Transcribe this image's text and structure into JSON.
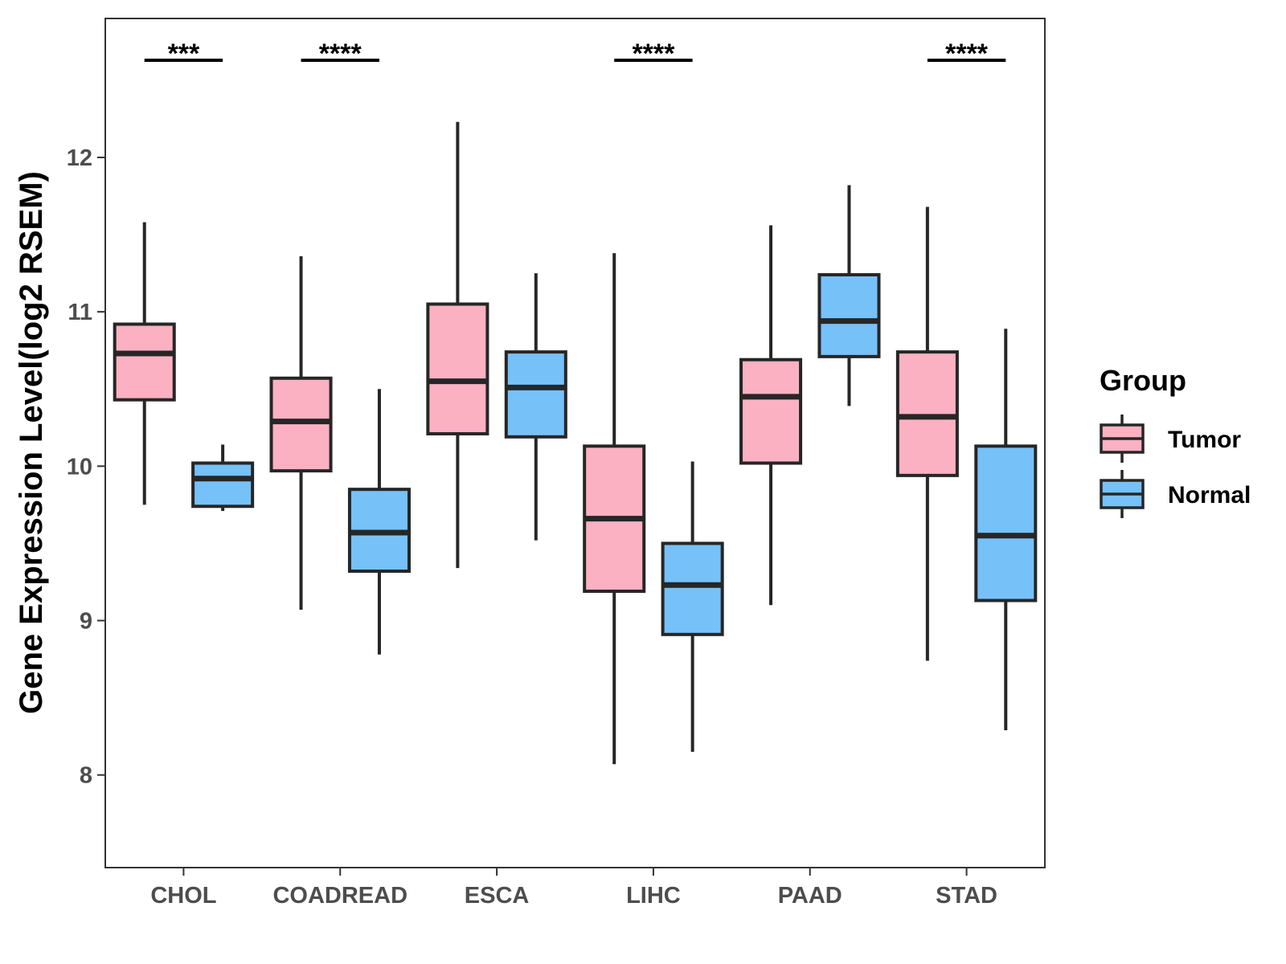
{
  "chart_data": {
    "type": "boxplot",
    "title": "",
    "xlabel": "",
    "ylabel": "Gene Expression Level(log2 RSEM)",
    "ylim": [
      7.4,
      12.9
    ],
    "yticks": [
      8,
      9,
      10,
      11,
      12
    ],
    "categories": [
      "CHOL",
      "COADREAD",
      "ESCA",
      "LIHC",
      "PAAD",
      "STAD"
    ],
    "legend": {
      "title": "Group",
      "position": "right",
      "entries": [
        {
          "name": "Tumor",
          "color": "#FBB1C2"
        },
        {
          "name": "Normal",
          "color": "#77C1F9"
        }
      ]
    },
    "series": [
      {
        "name": "Tumor",
        "color": "#FBB1C2",
        "boxes": [
          {
            "min": 9.75,
            "q1": 10.43,
            "median": 10.73,
            "q3": 10.92,
            "max": 11.58
          },
          {
            "min": 9.07,
            "q1": 9.97,
            "median": 10.29,
            "q3": 10.57,
            "max": 11.36
          },
          {
            "min": 9.34,
            "q1": 10.21,
            "median": 10.55,
            "q3": 11.05,
            "max": 12.23
          },
          {
            "min": 8.07,
            "q1": 9.19,
            "median": 9.66,
            "q3": 10.13,
            "max": 11.38
          },
          {
            "min": 9.1,
            "q1": 10.02,
            "median": 10.45,
            "q3": 10.69,
            "max": 11.56
          },
          {
            "min": 8.74,
            "q1": 9.94,
            "median": 10.32,
            "q3": 10.74,
            "max": 11.68
          }
        ]
      },
      {
        "name": "Normal",
        "color": "#77C1F9",
        "boxes": [
          {
            "min": 9.71,
            "q1": 9.74,
            "median": 9.92,
            "q3": 10.02,
            "max": 10.14
          },
          {
            "min": 8.78,
            "q1": 9.32,
            "median": 9.57,
            "q3": 9.85,
            "max": 10.5
          },
          {
            "min": 9.52,
            "q1": 10.19,
            "median": 10.51,
            "q3": 10.74,
            "max": 11.25
          },
          {
            "min": 8.15,
            "q1": 8.91,
            "median": 9.23,
            "q3": 9.5,
            "max": 10.03
          },
          {
            "min": 10.39,
            "q1": 10.71,
            "median": 10.94,
            "q3": 11.24,
            "max": 11.82
          },
          {
            "min": 8.29,
            "q1": 9.13,
            "median": 9.55,
            "q3": 10.13,
            "max": 10.89
          }
        ]
      }
    ],
    "significance": [
      "***",
      "****",
      "",
      "****",
      "",
      "****"
    ]
  }
}
